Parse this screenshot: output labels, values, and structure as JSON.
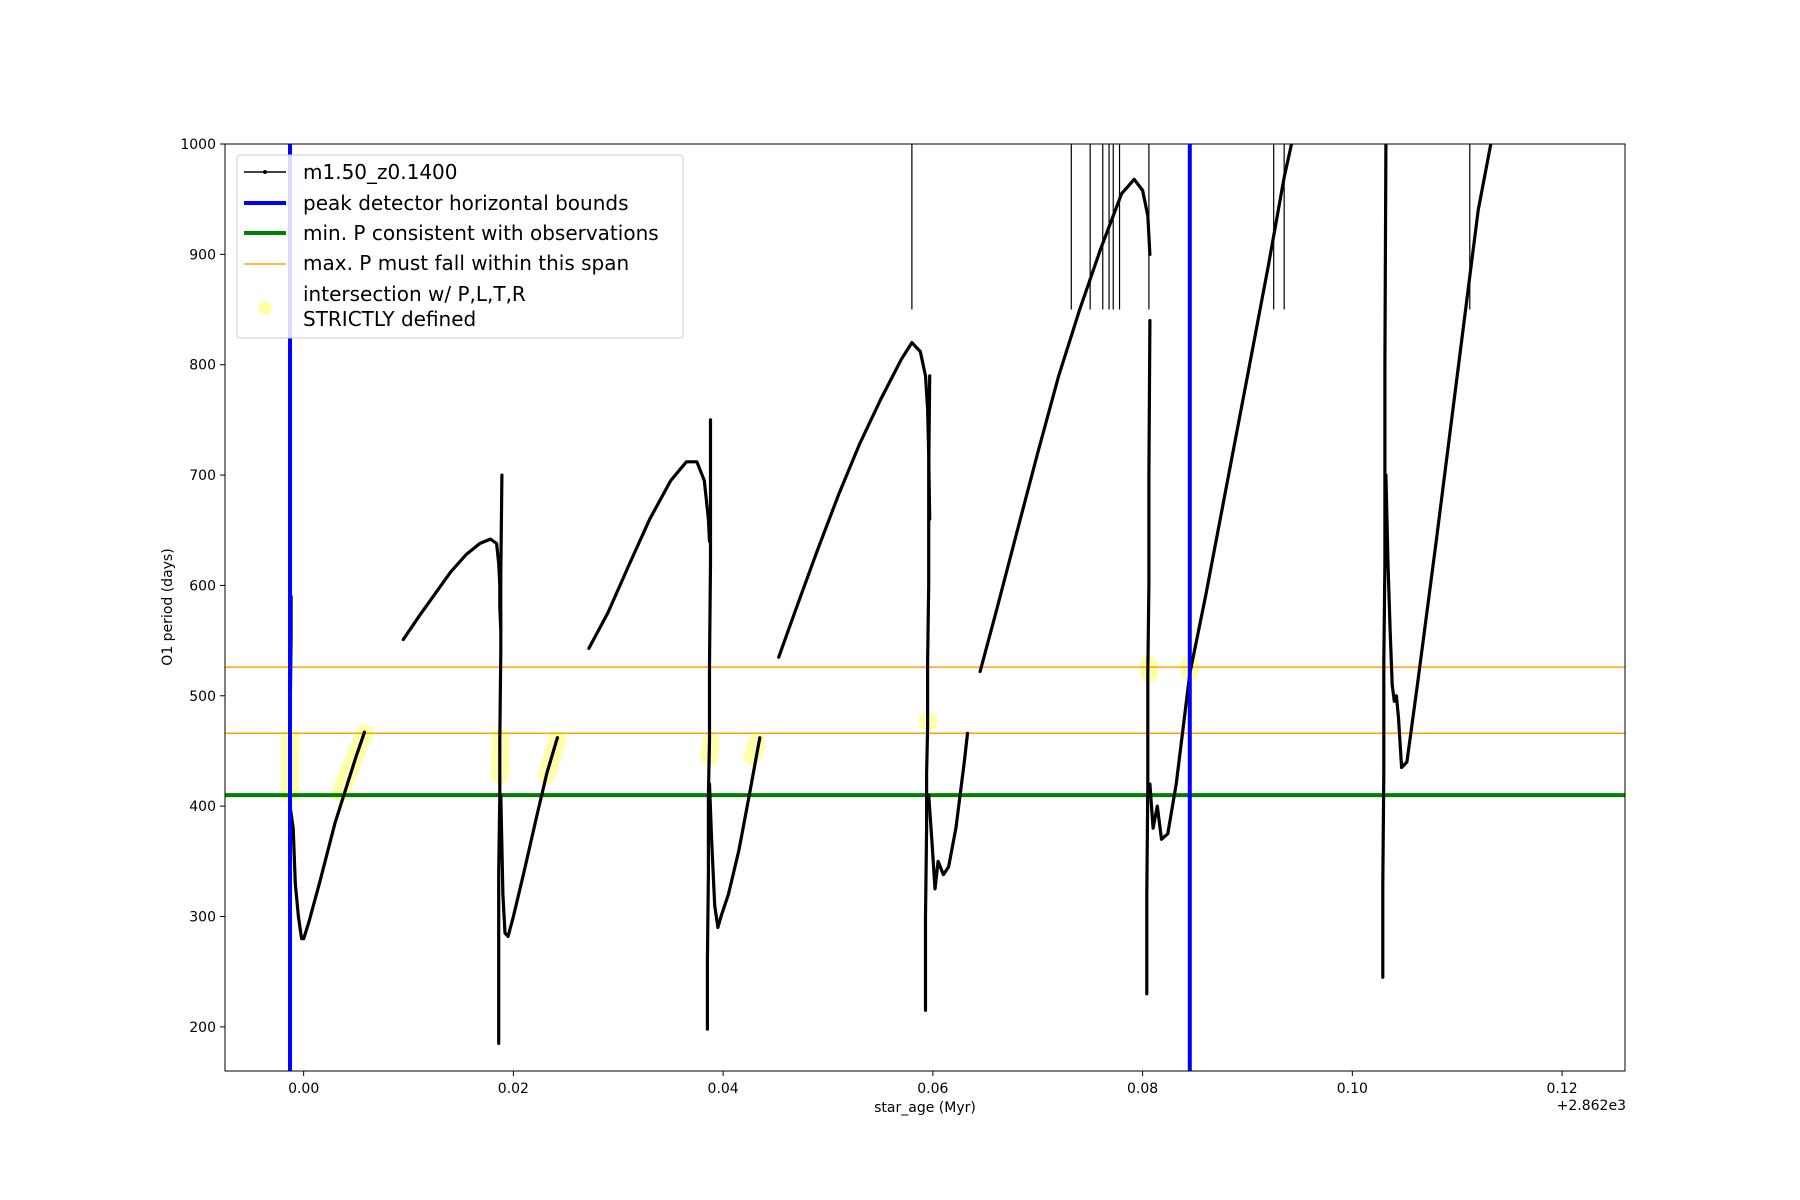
{
  "chart_data": {
    "type": "line",
    "xlabel": "star_age (Myr)",
    "ylabel": "O1 period (days)",
    "x_offset_label": "+2.862e3",
    "xlim": [
      -0.0075,
      0.126
    ],
    "ylim": [
      160,
      1000
    ],
    "xticks": [
      0.0,
      0.02,
      0.04,
      0.06,
      0.08,
      0.1,
      0.12
    ],
    "xtick_labels": [
      "0.00",
      "0.02",
      "0.04",
      "0.06",
      "0.08",
      "0.10",
      "0.12"
    ],
    "yticks": [
      200,
      300,
      400,
      500,
      600,
      700,
      800,
      900,
      1000
    ],
    "ytick_labels": [
      "200",
      "300",
      "400",
      "500",
      "600",
      "700",
      "800",
      "900",
      "1000"
    ],
    "grid": false,
    "legend_position": "top-left",
    "legend": [
      {
        "label": "m1.50_z0.1400",
        "style": "black-line-dot"
      },
      {
        "label": "peak detector horizontal bounds",
        "style": "blue-thick"
      },
      {
        "label": "min. P consistent with observations",
        "style": "green-thick"
      },
      {
        "label": "max. P must fall within this span",
        "style": "orange-thin"
      },
      {
        "label_lines": [
          "intersection w/ P,L,T,R",
          "STRICTLY defined"
        ],
        "style": "yellow-circle"
      }
    ],
    "colors": {
      "series": "#000000",
      "vline": "#0000ff",
      "min_line": "#008000",
      "max_span": "#ffa500",
      "highlight": "#ffff66"
    },
    "vlines": [
      -0.0013,
      0.0845
    ],
    "hline_min": 410,
    "hlines_max": [
      466,
      526
    ],
    "series": [
      {
        "name": "m1.50_z0.1400",
        "segments": [
          [
            [
              -0.0013,
              175
            ],
            [
              -0.0013,
              240
            ],
            [
              -0.0013,
              300
            ],
            [
              -0.0013,
              370
            ],
            [
              -0.0013,
              430
            ],
            [
              -0.0013,
              470
            ],
            [
              -0.0012,
              555
            ],
            [
              -0.0012,
              590
            ]
          ],
          [
            [
              -0.0013,
              400
            ],
            [
              -0.001,
              380
            ],
            [
              -0.0008,
              330
            ],
            [
              -0.0005,
              300
            ],
            [
              -0.0002,
              280
            ],
            [
              0.0,
              280
            ],
            [
              0.0005,
              295
            ],
            [
              0.0015,
              330
            ],
            [
              0.003,
              385
            ],
            [
              0.004,
              415
            ],
            [
              0.005,
              445
            ],
            [
              0.0058,
              467
            ]
          ],
          [
            [
              0.0095,
              551
            ],
            [
              0.011,
              572
            ],
            [
              0.0125,
              592
            ],
            [
              0.014,
              612
            ],
            [
              0.0155,
              628
            ],
            [
              0.0168,
              638
            ],
            [
              0.0178,
              642
            ],
            [
              0.0184,
              638
            ],
            [
              0.0186,
              620
            ],
            [
              0.0187,
              600
            ],
            [
              0.0187,
              580
            ],
            [
              0.0188,
              560
            ]
          ],
          [
            [
              0.0186,
              185
            ],
            [
              0.0186,
              260
            ],
            [
              0.0186,
              340
            ],
            [
              0.0187,
              410
            ],
            [
              0.0187,
              460
            ],
            [
              0.0188,
              540
            ],
            [
              0.0188,
              610
            ],
            [
              0.0189,
              700
            ]
          ],
          [
            [
              0.0188,
              410
            ],
            [
              0.019,
              320
            ],
            [
              0.0192,
              285
            ],
            [
              0.0195,
              282
            ],
            [
              0.02,
              300
            ],
            [
              0.021,
              340
            ],
            [
              0.0222,
              390
            ],
            [
              0.0232,
              430
            ],
            [
              0.0242,
              462
            ]
          ],
          [
            [
              0.0272,
              543
            ],
            [
              0.029,
              575
            ],
            [
              0.031,
              618
            ],
            [
              0.033,
              660
            ],
            [
              0.035,
              695
            ],
            [
              0.0365,
              712
            ],
            [
              0.0375,
              712
            ],
            [
              0.0382,
              695
            ],
            [
              0.0386,
              660
            ],
            [
              0.0387,
              640
            ]
          ],
          [
            [
              0.0385,
              198
            ],
            [
              0.0385,
              260
            ],
            [
              0.0386,
              340
            ],
            [
              0.0386,
              410
            ],
            [
              0.0387,
              460
            ],
            [
              0.0387,
              530
            ],
            [
              0.0388,
              620
            ],
            [
              0.0388,
              750
            ]
          ],
          [
            [
              0.0387,
              420
            ],
            [
              0.0389,
              370
            ],
            [
              0.0392,
              310
            ],
            [
              0.0395,
              290
            ],
            [
              0.0398,
              300
            ],
            [
              0.0405,
              320
            ],
            [
              0.0415,
              360
            ],
            [
              0.0425,
              410
            ],
            [
              0.0435,
              462
            ]
          ],
          [
            [
              0.0453,
              535
            ],
            [
              0.047,
              580
            ],
            [
              0.049,
              632
            ],
            [
              0.051,
              682
            ],
            [
              0.053,
              728
            ],
            [
              0.055,
              768
            ],
            [
              0.057,
              805
            ],
            [
              0.058,
              820
            ],
            [
              0.0588,
              812
            ],
            [
              0.0593,
              790
            ],
            [
              0.0595,
              760
            ],
            [
              0.0596,
              720
            ],
            [
              0.0597,
              660
            ]
          ],
          [
            [
              0.0593,
              215
            ],
            [
              0.0593,
              300
            ],
            [
              0.0594,
              380
            ],
            [
              0.0594,
              430
            ],
            [
              0.0595,
              470
            ],
            [
              0.0595,
              530
            ],
            [
              0.0596,
              600
            ],
            [
              0.0596,
              700
            ],
            [
              0.0597,
              790
            ]
          ],
          [
            [
              0.0596,
              410
            ],
            [
              0.0599,
              370
            ],
            [
              0.0602,
              325
            ],
            [
              0.0605,
              350
            ],
            [
              0.061,
              338
            ],
            [
              0.0615,
              345
            ],
            [
              0.0622,
              380
            ],
            [
              0.063,
              440
            ],
            [
              0.0633,
              466
            ]
          ],
          [
            [
              0.0645,
              522
            ],
            [
              0.066,
              575
            ],
            [
              0.068,
              648
            ],
            [
              0.07,
              720
            ],
            [
              0.072,
              790
            ],
            [
              0.074,
              850
            ],
            [
              0.076,
              905
            ],
            [
              0.078,
              955
            ],
            [
              0.0792,
              968
            ],
            [
              0.08,
              958
            ],
            [
              0.0805,
              935
            ],
            [
              0.0807,
              900
            ]
          ],
          [
            [
              0.0804,
              230
            ],
            [
              0.0804,
              320
            ],
            [
              0.0805,
              420
            ],
            [
              0.0805,
              520
            ],
            [
              0.0806,
              600
            ],
            [
              0.0806,
              700
            ],
            [
              0.0807,
              840
            ]
          ],
          [
            [
              0.0807,
              420
            ],
            [
              0.081,
              380
            ],
            [
              0.0814,
              400
            ],
            [
              0.0818,
              370
            ],
            [
              0.0824,
              375
            ],
            [
              0.0832,
              420
            ],
            [
              0.0845,
              520
            ],
            [
              0.086,
              590
            ],
            [
              0.088,
              690
            ],
            [
              0.09,
              790
            ],
            [
              0.092,
              890
            ],
            [
              0.0935,
              970
            ],
            [
              0.0942,
              1000
            ]
          ],
          [
            [
              0.1029,
              245
            ],
            [
              0.1029,
              330
            ],
            [
              0.103,
              430
            ],
            [
              0.103,
              530
            ],
            [
              0.1031,
              620
            ],
            [
              0.1031,
              720
            ],
            [
              0.1031,
              800
            ],
            [
              0.1032,
              1000
            ]
          ],
          [
            [
              0.1032,
              700
            ],
            [
              0.1034,
              620
            ],
            [
              0.1036,
              560
            ],
            [
              0.1038,
              510
            ],
            [
              0.104,
              495
            ],
            [
              0.1042,
              500
            ],
            [
              0.1044,
              480
            ],
            [
              0.1047,
              435
            ],
            [
              0.1052,
              440
            ],
            [
              0.1062,
              510
            ],
            [
              0.108,
              640
            ],
            [
              0.11,
              790
            ],
            [
              0.112,
              940
            ],
            [
              0.1132,
              1000
            ]
          ]
        ],
        "spikes_to_top": [
          0.058,
          0.0732,
          0.075,
          0.0762,
          0.0768,
          0.0772,
          0.0778,
          0.0806,
          0.0925,
          0.0935,
          0.1112
        ]
      }
    ],
    "highlights": [
      [
        [
          -0.0013,
          412
        ],
        [
          -0.0013,
          462
        ]
      ],
      [
        [
          0.0035,
          412
        ],
        [
          0.0058,
          466
        ]
      ],
      [
        [
          0.0187,
          428
        ],
        [
          0.0188,
          462
        ]
      ],
      [
        [
          0.0232,
          428
        ],
        [
          0.0242,
          460
        ]
      ],
      [
        [
          0.0387,
          445
        ],
        [
          0.0388,
          458
        ]
      ],
      [
        [
          0.0428,
          445
        ],
        [
          0.0432,
          458
        ]
      ],
      [
        [
          0.0595,
          477
        ],
        [
          0.0596,
          477
        ]
      ],
      [
        [
          0.0806,
          520
        ],
        [
          0.0806,
          528
        ]
      ],
      [
        [
          0.0845,
          522
        ],
        [
          0.0845,
          528
        ]
      ]
    ]
  }
}
